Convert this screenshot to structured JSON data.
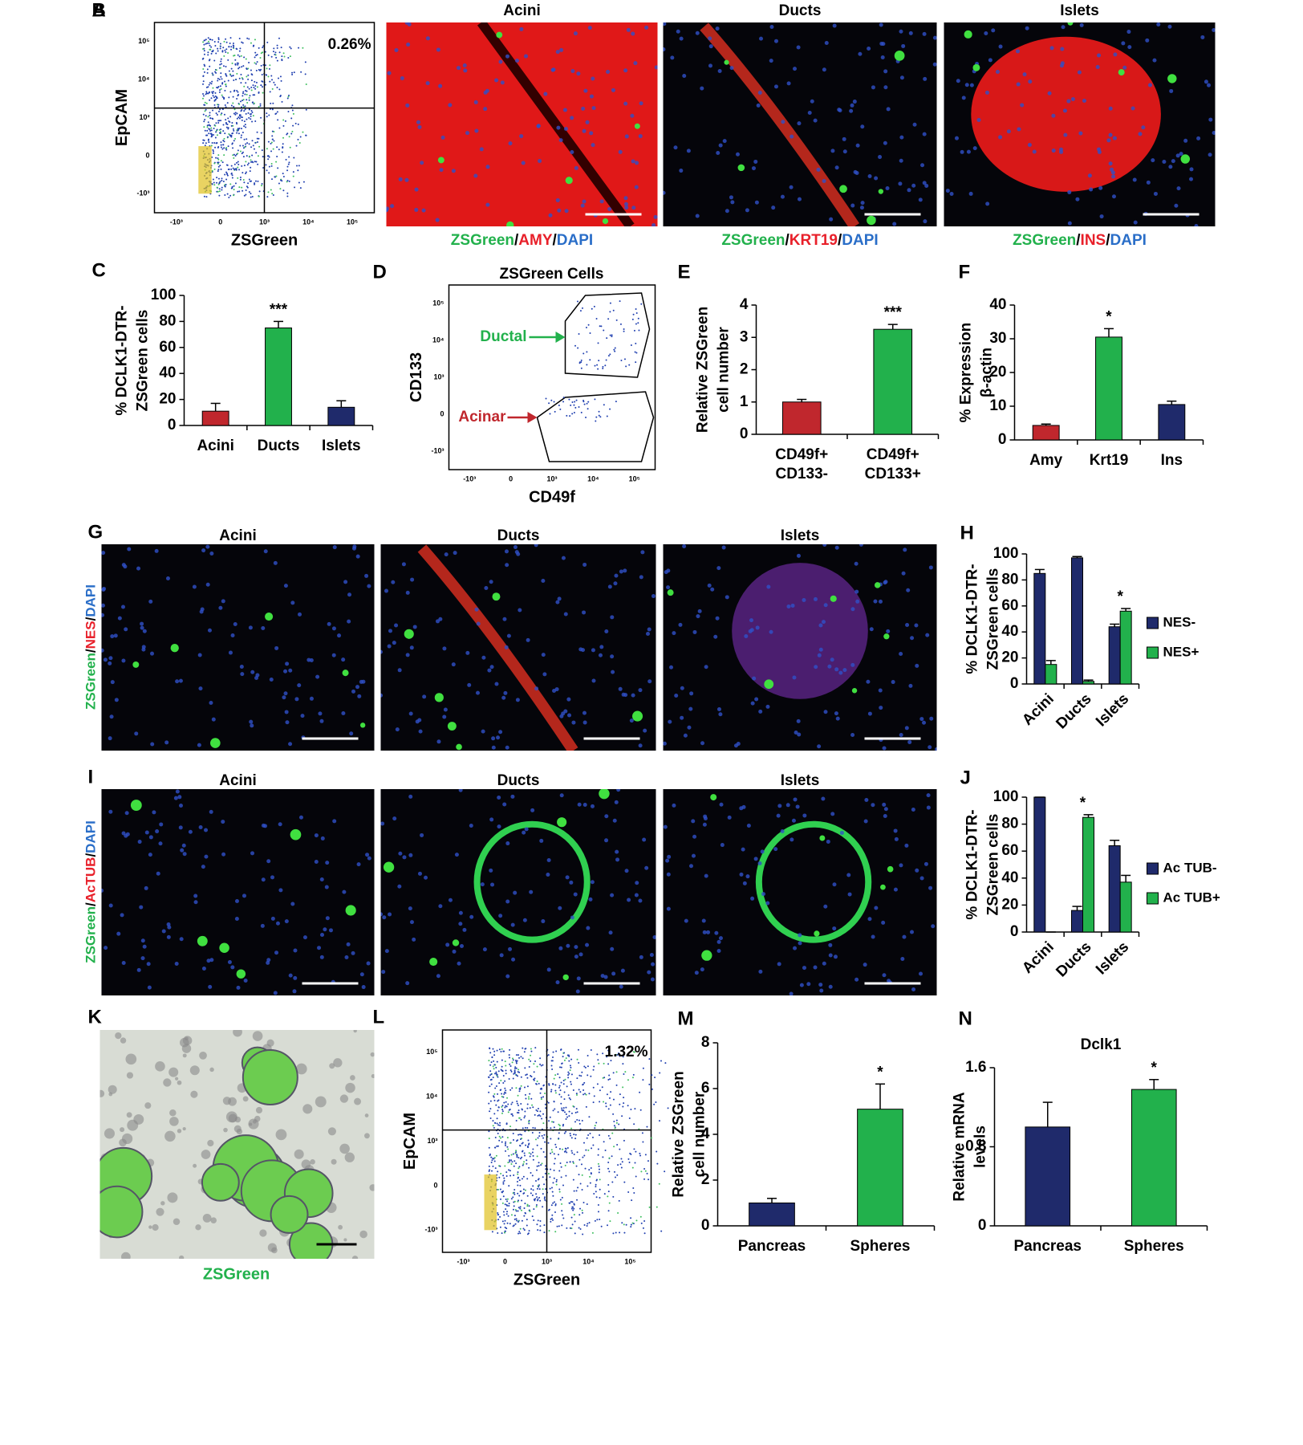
{
  "flow_plots": {
    "A": {
      "letter": "A",
      "xlabel": "ZSGreen",
      "ylabel": "EpCAM",
      "gate_label": "0.26%",
      "xticks": [
        "-10³",
        "0",
        "10³",
        "10⁴",
        "10⁵"
      ],
      "yticks": [
        "-10³",
        "0",
        "10³",
        "10⁴",
        "10⁵"
      ]
    },
    "D": {
      "letter": "D",
      "title": "ZSGreen Cells",
      "xlabel": "CD49f",
      "ylabel": "CD133",
      "upper_gate": "Ductal",
      "lower_gate": "Acinar",
      "xticks": [
        "-10³",
        "0",
        "10³",
        "10⁴",
        "10⁵"
      ],
      "yticks": [
        "-10³",
        "0",
        "10³",
        "10⁴",
        "10⁵"
      ]
    },
    "L": {
      "letter": "L",
      "xlabel": "ZSGreen",
      "ylabel": "EpCAM",
      "gate_label": "1.32%",
      "xticks": [
        "-10³",
        "0",
        "10³",
        "10⁴",
        "10⁵"
      ],
      "yticks": [
        "-10³",
        "0",
        "10³",
        "10⁴",
        "10⁵"
      ]
    }
  },
  "micrographs": {
    "B": {
      "letter": "B",
      "titles": [
        "Acini",
        "Ducts",
        "Islets"
      ],
      "stains": [
        [
          {
            "text": "ZSGreen",
            "color": "#22b14c"
          },
          {
            "text": "/",
            "color": "#000000"
          },
          {
            "text": "AMY",
            "color": "#e8202a"
          },
          {
            "text": "/",
            "color": "#000000"
          },
          {
            "text": "DAPI",
            "color": "#2a6ec8"
          }
        ],
        [
          {
            "text": "ZSGreen",
            "color": "#22b14c"
          },
          {
            "text": "/",
            "color": "#000000"
          },
          {
            "text": "KRT19",
            "color": "#e8202a"
          },
          {
            "text": "/",
            "color": "#000000"
          },
          {
            "text": "DAPI",
            "color": "#2a6ec8"
          }
        ],
        [
          {
            "text": "ZSGreen",
            "color": "#22b14c"
          },
          {
            "text": "/",
            "color": "#000000"
          },
          {
            "text": "INS",
            "color": "#e8202a"
          },
          {
            "text": "/",
            "color": "#000000"
          },
          {
            "text": "DAPI",
            "color": "#2a6ec8"
          }
        ]
      ]
    },
    "G": {
      "letter": "G",
      "titles": [
        "Acini",
        "Ducts",
        "Islets"
      ],
      "side_label": [
        {
          "text": "ZSGreen",
          "color": "#22b14c"
        },
        {
          "text": "/",
          "color": "#000000"
        },
        {
          "text": "NES",
          "color": "#e8202a"
        },
        {
          "text": "/",
          "color": "#000000"
        },
        {
          "text": "DAPI",
          "color": "#2a6ec8"
        }
      ]
    },
    "I": {
      "letter": "I",
      "titles": [
        "Acini",
        "Ducts",
        "Islets"
      ],
      "side_label": [
        {
          "text": "ZSGreen",
          "color": "#22b14c"
        },
        {
          "text": "/",
          "color": "#000000"
        },
        {
          "text": "AcTUB",
          "color": "#e8202a"
        },
        {
          "text": "/",
          "color": "#000000"
        },
        {
          "text": "DAPI",
          "color": "#2a6ec8"
        }
      ]
    },
    "K": {
      "letter": "K",
      "caption": "ZSGreen"
    }
  },
  "chart_data": [
    {
      "type": "bar",
      "letter": "C",
      "ylabel": [
        "% DCLK1-DTR-",
        "ZSGreen cells"
      ],
      "categories": [
        "Acini",
        "Ducts",
        "Islets"
      ],
      "values": [
        11,
        75,
        14
      ],
      "errors": [
        6,
        5,
        5
      ],
      "colors": [
        "#c0272d",
        "#22b14c",
        "#1f2a6b"
      ],
      "ylim": [
        0,
        100
      ],
      "yticks": [
        0,
        20,
        40,
        60,
        80,
        100
      ],
      "annotations": [
        {
          "text": "***",
          "category": "Ducts"
        }
      ]
    },
    {
      "type": "bar",
      "letter": "E",
      "ylabel": [
        "Relative ZSGreen",
        "cell number"
      ],
      "categories": [
        [
          "CD49f+",
          "CD133-"
        ],
        [
          "CD49f+",
          "CD133+"
        ]
      ],
      "values": [
        1.0,
        3.25
      ],
      "errors": [
        0.08,
        0.15
      ],
      "colors": [
        "#c0272d",
        "#22b14c"
      ],
      "ylim": [
        0,
        4
      ],
      "yticks": [
        0,
        1,
        2,
        3,
        4
      ],
      "annotations": [
        {
          "text": "***",
          "category": 1
        }
      ]
    },
    {
      "type": "bar",
      "letter": "F",
      "ylabel": [
        "% Expression",
        "β-actin"
      ],
      "categories": [
        "Amy",
        "Krt19",
        "Ins"
      ],
      "values": [
        4.3,
        30.5,
        10.5
      ],
      "errors": [
        0.4,
        2.5,
        1
      ],
      "colors": [
        "#c0272d",
        "#22b14c",
        "#1f2a6b"
      ],
      "ylim": [
        0,
        40
      ],
      "yticks": [
        0,
        10,
        20,
        30,
        40
      ],
      "annotations": [
        {
          "text": "*",
          "category": "Krt19"
        }
      ]
    },
    {
      "type": "grouped_bar",
      "letter": "H",
      "ylabel": [
        "% DCLK1-DTR-",
        "ZSGreen cells"
      ],
      "categories": [
        "Acini",
        "Ducts",
        "Islets"
      ],
      "series": [
        {
          "name": "NES-",
          "color": "#1f2a6b",
          "values": [
            85,
            97,
            44
          ],
          "errors": [
            3,
            1,
            2
          ]
        },
        {
          "name": "NES+",
          "color": "#22b14c",
          "values": [
            15,
            2,
            56
          ],
          "errors": [
            3,
            1,
            2
          ]
        }
      ],
      "ylim": [
        0,
        100
      ],
      "yticks": [
        0,
        20,
        40,
        60,
        80,
        100
      ],
      "legend": "right",
      "annotations": [
        {
          "text": "*",
          "category": "Islets"
        }
      ]
    },
    {
      "type": "grouped_bar",
      "letter": "J",
      "ylabel": [
        "% DCLK1-DTR-",
        "ZSGreen cells"
      ],
      "categories": [
        "Acini",
        "Ducts",
        "Islets"
      ],
      "series": [
        {
          "name": "Ac TUB-",
          "color": "#1f2a6b",
          "values": [
            100,
            16,
            64
          ],
          "errors": [
            0,
            3,
            4
          ]
        },
        {
          "name": "Ac TUB+",
          "color": "#22b14c",
          "values": [
            0,
            85,
            37
          ],
          "errors": [
            0,
            2,
            5
          ]
        }
      ],
      "ylim": [
        0,
        100
      ],
      "yticks": [
        0,
        20,
        40,
        60,
        80,
        100
      ],
      "legend": "right",
      "annotations": [
        {
          "text": "*",
          "category": "Ducts"
        }
      ]
    },
    {
      "type": "bar",
      "letter": "M",
      "ylabel": [
        "Relative ZSGreen",
        "cell number"
      ],
      "categories": [
        "Pancreas",
        "Spheres"
      ],
      "values": [
        1.0,
        5.1
      ],
      "errors": [
        0.2,
        1.1
      ],
      "colors": [
        "#1f2a6b",
        "#22b14c"
      ],
      "ylim": [
        0,
        8
      ],
      "yticks": [
        0,
        2,
        4,
        6,
        8
      ],
      "annotations": [
        {
          "text": "*",
          "category": "Spheres"
        }
      ]
    },
    {
      "type": "bar",
      "letter": "N",
      "title": "Dclk1",
      "ylabel": [
        "Relative mRNA",
        "levels"
      ],
      "categories": [
        "Pancreas",
        "Spheres"
      ],
      "values": [
        1.0,
        1.38
      ],
      "errors": [
        0.25,
        0.1
      ],
      "colors": [
        "#1f2a6b",
        "#22b14c"
      ],
      "ylim": [
        0,
        1.6
      ],
      "yticks": [
        0,
        0.8,
        1.6
      ],
      "annotations": [
        {
          "text": "*",
          "category": "Spheres"
        }
      ]
    }
  ]
}
